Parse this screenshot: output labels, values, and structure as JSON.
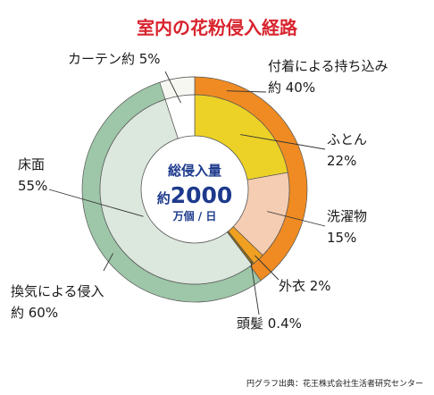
{
  "title": "室内の花粉侵入経路",
  "center": {
    "line1": "総侵入量",
    "prefix": "約",
    "value": "2000",
    "unit": "万個 / 日"
  },
  "source": "円グラフ出典：花王株式会社生活者研究センター",
  "colors": {
    "title": "#d8242e",
    "center_text": "#1d3a8c",
    "outer_carry": "#ef8b22",
    "outer_curtain": "#f7f7f2",
    "outer_ventilation": "#9ec6a8",
    "inner_futon": "#ecd227",
    "inner_wash": "#f5cdb2",
    "inner_clothes": "#f0a020",
    "inner_hair": "#8a6a10",
    "inner_floor": "#dce7dd",
    "inner_curtain": "#ffffff",
    "center_fill": "#ffffff",
    "edge": "#555555"
  },
  "chart_data": {
    "type": "pie",
    "title": "室内の花粉侵入経路",
    "total": "約2000万個 / 日",
    "outer_ring": [
      {
        "label_lines": [
          "付着による持ち込み",
          "約 40%"
        ],
        "value": 40,
        "color": "#ef8b22"
      },
      {
        "label_lines": [
          "換気による侵入",
          "約 60%"
        ],
        "value": 60,
        "color": "#9ec6a8"
      }
    ],
    "inner_ring": [
      {
        "label_lines": [
          "ふとん",
          "22%"
        ],
        "value": 22,
        "color": "#ecd227"
      },
      {
        "label_lines": [
          "洗濯物",
          "15%"
        ],
        "value": 15,
        "color": "#f5cdb2"
      },
      {
        "label_lines": [
          "外衣 2%"
        ],
        "value": 2,
        "color": "#f0a020"
      },
      {
        "label_lines": [
          "頭髪 0.4%"
        ],
        "value": 0.4,
        "color": "#8a6a10"
      },
      {
        "label_lines": [
          "床面",
          "55%"
        ],
        "value": 55,
        "color": "#dce7dd"
      },
      {
        "label_lines": [
          "カーテン約 5%"
        ],
        "value": 5,
        "color": "#ffffff"
      }
    ]
  }
}
